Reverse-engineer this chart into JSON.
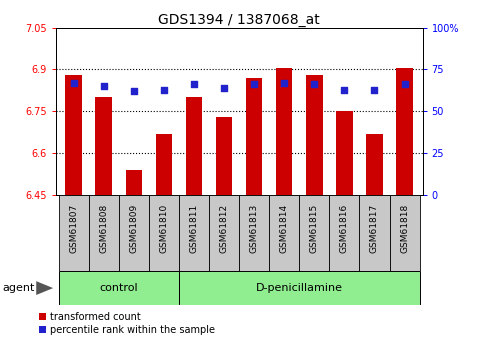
{
  "title": "GDS1394 / 1387068_at",
  "samples": [
    "GSM61807",
    "GSM61808",
    "GSM61809",
    "GSM61810",
    "GSM61811",
    "GSM61812",
    "GSM61813",
    "GSM61814",
    "GSM61815",
    "GSM61816",
    "GSM61817",
    "GSM61818"
  ],
  "red_values": [
    6.88,
    6.8,
    6.54,
    6.67,
    6.8,
    6.73,
    6.87,
    6.905,
    6.88,
    6.75,
    6.67,
    6.905
  ],
  "blue_values": [
    67,
    65,
    62,
    63,
    66,
    64,
    66,
    67,
    66,
    63,
    63,
    66
  ],
  "ymin": 6.45,
  "ymax": 7.05,
  "ytick_vals": [
    6.45,
    6.6,
    6.75,
    6.9,
    7.05
  ],
  "ytick_labels": [
    "6.45",
    "6.6",
    "6.75",
    "6.9",
    "7.05"
  ],
  "right_ytick_vals": [
    0,
    25,
    50,
    75,
    100
  ],
  "right_ytick_labels": [
    "0",
    "25",
    "50",
    "75",
    "100%"
  ],
  "control_count": 4,
  "control_label": "control",
  "treatment_label": "D-penicillamine",
  "agent_label": "agent",
  "legend_red": "transformed count",
  "legend_blue": "percentile rank within the sample",
  "bar_color": "#cc0000",
  "dot_color": "#2222cc",
  "control_bg": "#c8c8c8",
  "treatment_bg": "#90ee90",
  "bar_width": 0.55,
  "title_fontsize": 10,
  "tick_fontsize": 7,
  "label_fontsize": 8,
  "sample_fontsize": 6.5
}
